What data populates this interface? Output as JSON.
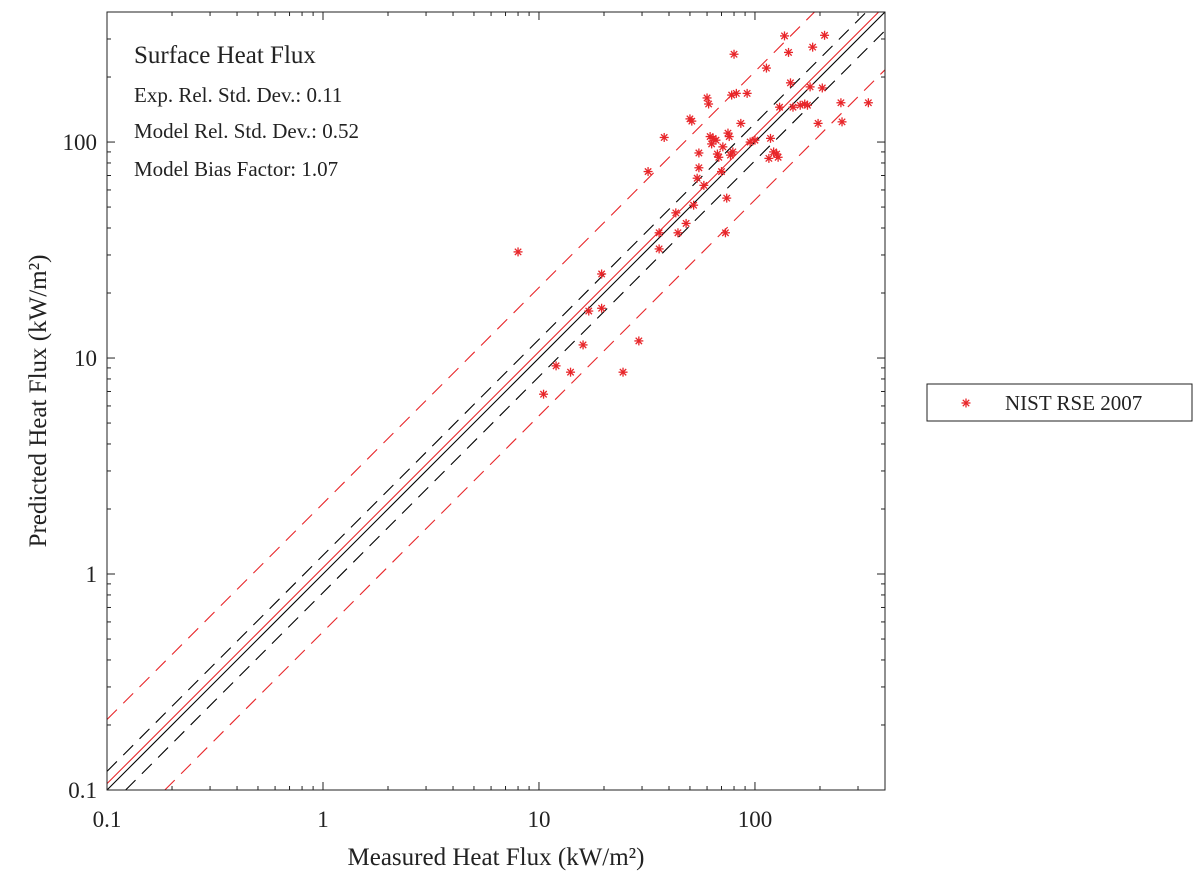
{
  "chart_data": {
    "type": "scatter",
    "title": "Surface Heat Flux",
    "stats": [
      "Exp. Rel. Std. Dev.: 0.11",
      "Model Rel. Std. Dev.: 0.52",
      "Model Bias Factor: 1.07"
    ],
    "xlabel": "Measured Heat Flux (kW/m²)",
    "ylabel": "Predicted Heat Flux (kW/m²)",
    "x_scale": "log",
    "y_scale": "log",
    "xlim": [
      0.1,
      400
    ],
    "ylim": [
      0.1,
      400
    ],
    "x_ticks": [
      0.1,
      1,
      10,
      100
    ],
    "x_tick_labels": [
      "0.1",
      "1",
      "10",
      "100"
    ],
    "y_ticks": [
      0.1,
      1,
      10,
      100
    ],
    "y_tick_labels": [
      "0.1",
      "1",
      "10",
      "100"
    ],
    "grid": false,
    "legend": {
      "position": "outside-right",
      "entries": [
        "NIST RSE 2007"
      ]
    },
    "reference_lines": {
      "identity_color": "#000000",
      "identity": 1.0,
      "exp_band": [
        1.22,
        0.82
      ],
      "model_color": "#e8262a",
      "model": 1.07,
      "model_band": [
        2.12,
        0.54
      ]
    },
    "series": [
      {
        "name": "NIST RSE 2007",
        "color": "#e8262a",
        "marker": "asterisk",
        "points": [
          [
            8,
            31
          ],
          [
            10.5,
            6.8
          ],
          [
            12,
            9.2
          ],
          [
            14,
            8.6
          ],
          [
            16,
            11.5
          ],
          [
            17,
            16.5
          ],
          [
            19.5,
            17
          ],
          [
            19.5,
            24.5
          ],
          [
            24.5,
            8.6
          ],
          [
            29,
            12
          ],
          [
            32,
            73
          ],
          [
            36,
            32
          ],
          [
            36,
            38
          ],
          [
            38,
            105
          ],
          [
            43,
            47
          ],
          [
            44,
            38
          ],
          [
            48,
            42
          ],
          [
            50,
            128
          ],
          [
            51,
            125
          ],
          [
            52,
            51
          ],
          [
            54,
            68
          ],
          [
            55,
            76
          ],
          [
            55,
            89
          ],
          [
            58,
            63
          ],
          [
            60,
            160
          ],
          [
            61,
            150
          ],
          [
            62,
            106
          ],
          [
            63,
            98
          ],
          [
            64,
            104
          ],
          [
            66,
            102
          ],
          [
            67,
            88
          ],
          [
            68,
            85
          ],
          [
            70,
            73
          ],
          [
            71,
            95
          ],
          [
            73,
            38
          ],
          [
            74,
            55
          ],
          [
            75,
            110
          ],
          [
            76,
            106
          ],
          [
            77,
            87
          ],
          [
            78,
            165
          ],
          [
            79,
            90
          ],
          [
            80,
            255
          ],
          [
            82,
            168
          ],
          [
            86,
            122
          ],
          [
            92,
            168
          ],
          [
            95,
            100
          ],
          [
            100,
            102
          ],
          [
            113,
            220
          ],
          [
            116,
            84
          ],
          [
            118,
            104
          ],
          [
            122,
            90
          ],
          [
            126,
            88
          ],
          [
            128,
            85
          ],
          [
            130,
            145
          ],
          [
            137,
            310
          ],
          [
            143,
            260
          ],
          [
            146,
            188
          ],
          [
            150,
            145
          ],
          [
            162,
            148
          ],
          [
            170,
            150
          ],
          [
            175,
            148
          ],
          [
            180,
            180
          ],
          [
            185,
            275
          ],
          [
            196,
            122
          ],
          [
            205,
            178
          ],
          [
            210,
            312
          ],
          [
            250,
            152
          ],
          [
            253,
            124
          ],
          [
            335,
            152
          ]
        ]
      }
    ]
  }
}
